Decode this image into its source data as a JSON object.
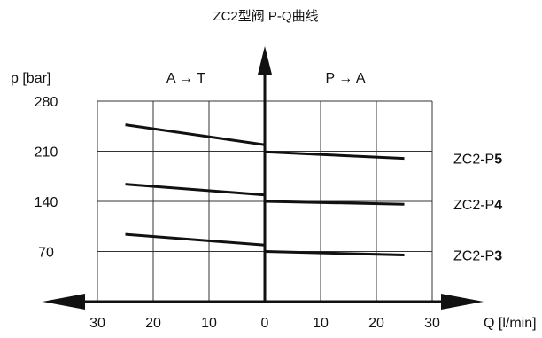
{
  "chart_data": {
    "type": "line",
    "title": "ZC2型阀 P-Q曲线",
    "ylabel": "p [bar]",
    "xlabel": "Q [l/min]",
    "region_left": "A → T",
    "region_right": "P → A",
    "x_ticks": [
      "30",
      "20",
      "10",
      "0",
      "10",
      "20",
      "30"
    ],
    "y_ticks": [
      70,
      140,
      210,
      280
    ],
    "xlim": [
      -30,
      30
    ],
    "ylim": [
      0,
      280
    ],
    "grid": true,
    "series": [
      {
        "name_prefix": "ZC2-P",
        "name_suffix": "5",
        "left": [
          [
            -25,
            247
          ],
          [
            0,
            219
          ]
        ],
        "right": [
          [
            0,
            209
          ],
          [
            25,
            200
          ]
        ]
      },
      {
        "name_prefix": "ZC2-P",
        "name_suffix": "4",
        "left": [
          [
            -25,
            164
          ],
          [
            0,
            149
          ]
        ],
        "right": [
          [
            0,
            140
          ],
          [
            25,
            136
          ]
        ]
      },
      {
        "name_prefix": "ZC2-P",
        "name_suffix": "3",
        "left": [
          [
            -25,
            94
          ],
          [
            0,
            79
          ]
        ],
        "right": [
          [
            0,
            70
          ],
          [
            25,
            65
          ]
        ]
      }
    ]
  }
}
